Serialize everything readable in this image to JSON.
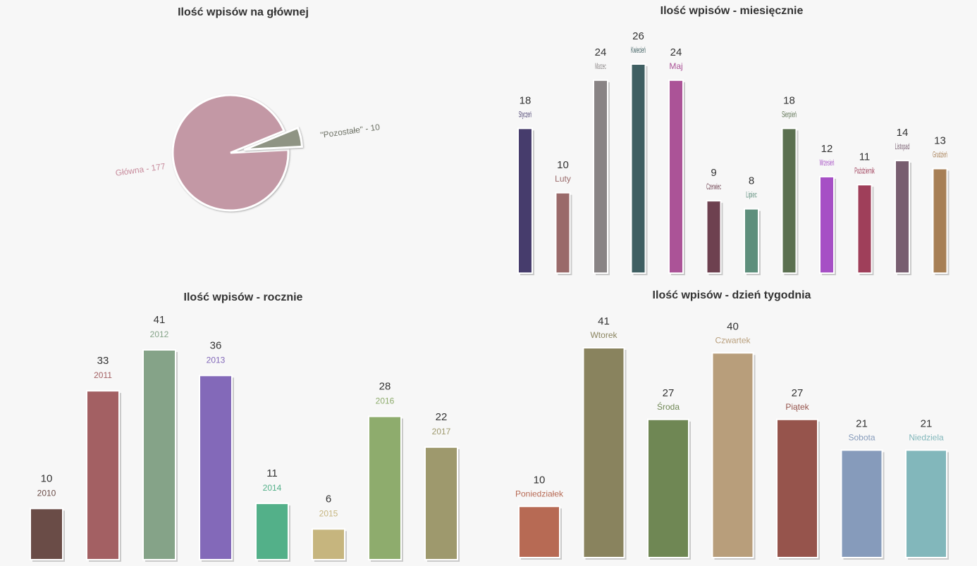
{
  "chart_data": [
    {
      "id": "pie",
      "type": "pie",
      "title": "Ilość wpisów na głównej",
      "slices": [
        {
          "label": "Główna",
          "value": 177,
          "color": "#c398a5",
          "display": "Główna - 177"
        },
        {
          "label": "\"Pozostałe\"",
          "value": 10,
          "color": "#8f9484",
          "display": "\"Pozostałe\" - 10"
        }
      ]
    },
    {
      "id": "month",
      "type": "bar",
      "title": "Ilość wpisów - miesięcznie",
      "categories": [
        "Styczeń",
        "Luty",
        "Marzec",
        "Kwiecień",
        "Maj",
        "Czerwiec",
        "Lipiec",
        "Sierpień",
        "Wrzesień",
        "Październik",
        "Listopad",
        "Grudzień"
      ],
      "values": [
        18,
        10,
        24,
        26,
        24,
        9,
        8,
        18,
        12,
        11,
        14,
        13
      ],
      "colors": [
        "#463c6c",
        "#9a6a6a",
        "#898485",
        "#3f5f62",
        "#ab5397",
        "#6e4150",
        "#5e8f7c",
        "#5b7050",
        "#a64fc5",
        "#9f3f5a",
        "#785e70",
        "#a77f55"
      ],
      "ylim": [
        0,
        26
      ]
    },
    {
      "id": "year",
      "type": "bar",
      "title": "Ilość wpisów - rocznie",
      "categories": [
        "2010",
        "2011",
        "2012",
        "2013",
        "2014",
        "2015",
        "2016",
        "2017"
      ],
      "values": [
        10,
        33,
        41,
        36,
        11,
        6,
        28,
        22
      ],
      "colors": [
        "#6a4c47",
        "#a36063",
        "#85a388",
        "#8369b9",
        "#53b089",
        "#c6b57e",
        "#8eac6d",
        "#9e996d"
      ],
      "ylim": [
        0,
        41
      ]
    },
    {
      "id": "week",
      "type": "bar",
      "title": "Ilość wpisów - dzień tygodnia",
      "categories": [
        "Poniedziałek",
        "Wtorek",
        "Środa",
        "Czwartek",
        "Piątek",
        "Sobota",
        "Niedziela"
      ],
      "values": [
        10,
        41,
        27,
        40,
        27,
        21,
        21
      ],
      "colors": [
        "#b76a54",
        "#89835e",
        "#6f8754",
        "#b89e7b",
        "#96544c",
        "#869bbb",
        "#82b7bb"
      ],
      "ylim": [
        0,
        41
      ]
    }
  ]
}
